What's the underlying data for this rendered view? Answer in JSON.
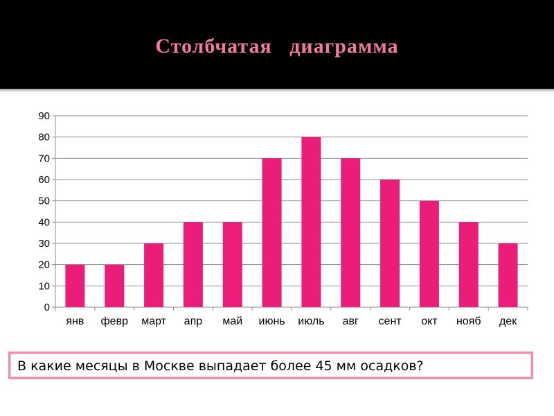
{
  "slide": {
    "title": "Столбчатая   диаграмма",
    "question": "В какие месяцы в Москве выпадает более 45 мм осадков?"
  },
  "colors": {
    "bar": "#ea1d78",
    "title": "#f07aa0",
    "band": "#000000",
    "box_border": "#f08cb0"
  },
  "chart_data": {
    "type": "bar",
    "categories": [
      "янв",
      "февр",
      "март",
      "апр",
      "май",
      "июнь",
      "июль",
      "авг",
      "сент",
      "окт",
      "нояб",
      "дек"
    ],
    "values": [
      20,
      20,
      30,
      40,
      40,
      70,
      80,
      70,
      60,
      50,
      40,
      30
    ],
    "ylim": [
      0,
      90
    ],
    "yticks": [
      0,
      10,
      20,
      30,
      40,
      50,
      60,
      70,
      80,
      90
    ],
    "grid": true,
    "legend": "none"
  }
}
